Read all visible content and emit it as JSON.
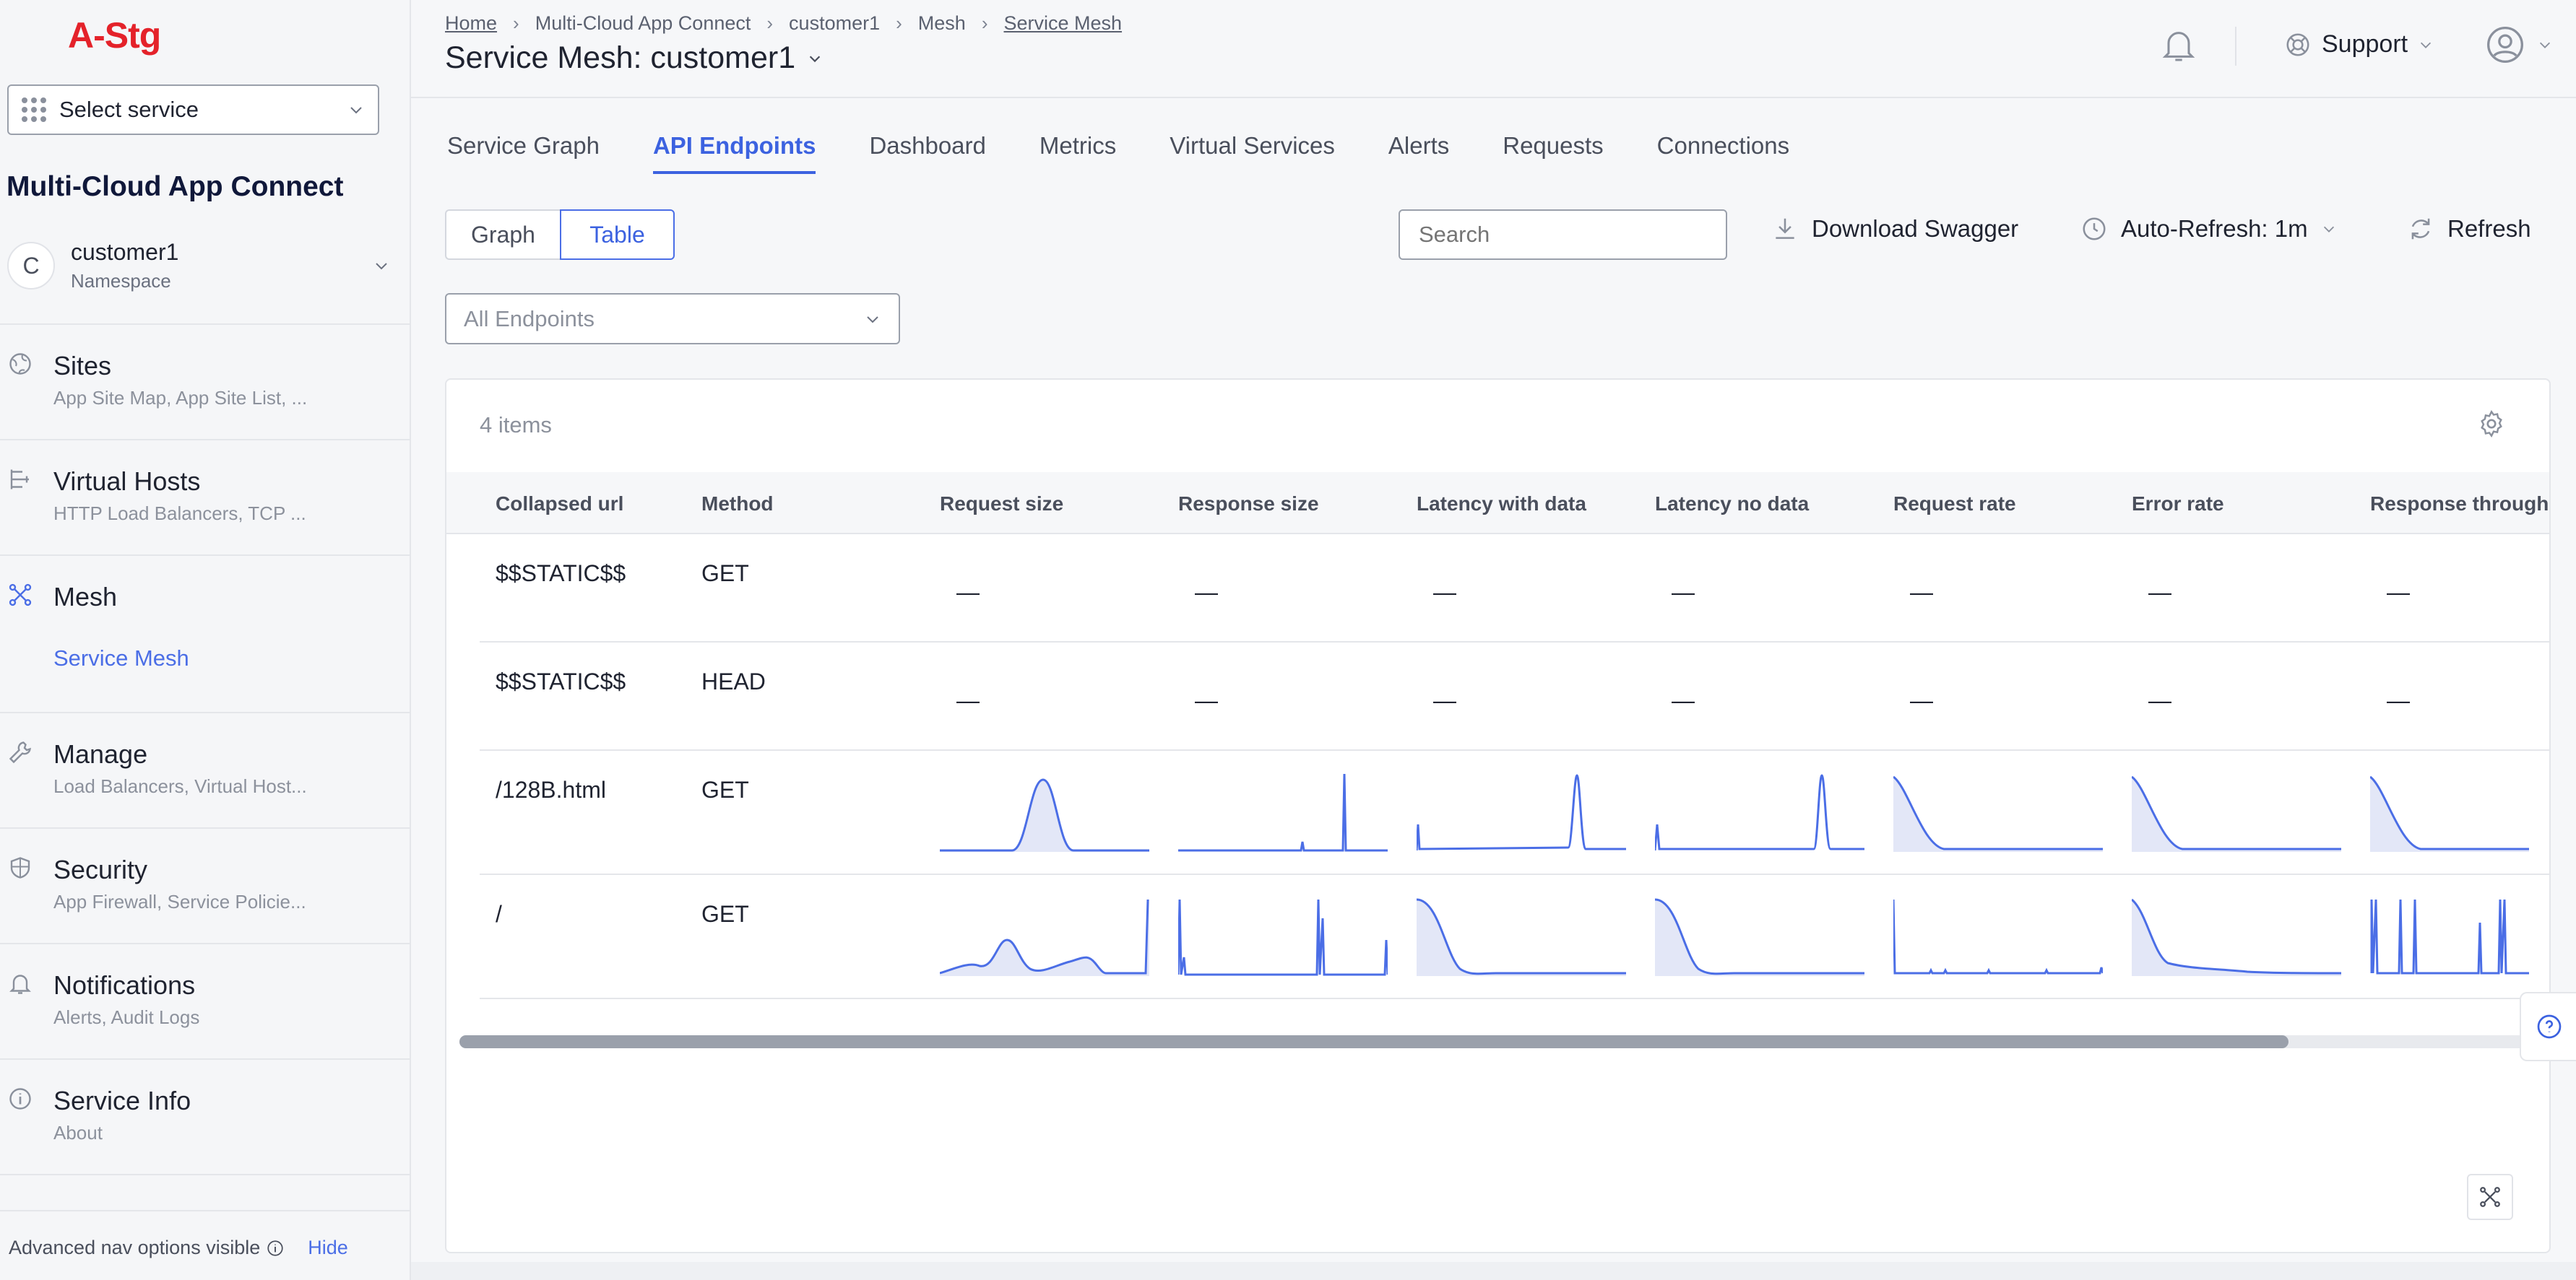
{
  "app": {
    "logo": "A-Stg",
    "service_select": "Select service",
    "workspace_title": "Multi-Cloud App Connect"
  },
  "namespace": {
    "initial": "C",
    "name": "customer1",
    "label": "Namespace"
  },
  "sidebar": {
    "items": [
      {
        "title": "Sites",
        "subtitle": "App Site Map, App Site List, ..."
      },
      {
        "title": "Virtual Hosts",
        "subtitle": "HTTP Load Balancers, TCP ..."
      },
      {
        "title": "Mesh",
        "subtitle": "",
        "sub_item": "Service Mesh"
      },
      {
        "title": "Manage",
        "subtitle": "Load Balancers, Virtual Host..."
      },
      {
        "title": "Security",
        "subtitle": "App Firewall, Service Policie..."
      },
      {
        "title": "Notifications",
        "subtitle": "Alerts, Audit Logs"
      },
      {
        "title": "Service Info",
        "subtitle": "About"
      }
    ],
    "footer_text": "Advanced nav options visible",
    "footer_link": "Hide"
  },
  "header": {
    "breadcrumbs": [
      "Home",
      "Multi-Cloud App Connect",
      "customer1",
      "Mesh",
      "Service Mesh"
    ],
    "title": "Service Mesh: customer1",
    "support": "Support"
  },
  "tabs": [
    "Service Graph",
    "API Endpoints",
    "Dashboard",
    "Metrics",
    "Virtual Services",
    "Alerts",
    "Requests",
    "Connections"
  ],
  "active_tab": "API Endpoints",
  "toolbar": {
    "view_graph": "Graph",
    "view_table": "Table",
    "search_placeholder": "Search",
    "download": "Download Swagger",
    "auto_refresh": "Auto-Refresh: 1m",
    "refresh": "Refresh",
    "endpoints_filter": "All Endpoints"
  },
  "table": {
    "count": "4 items",
    "columns": [
      "Collapsed url",
      "Method",
      "Request size",
      "Response size",
      "Latency with data",
      "Latency no data",
      "Request rate",
      "Error rate",
      "Response throughp"
    ],
    "rows": [
      {
        "url": "$$STATIC$$",
        "method": "GET",
        "cells": [
          "—",
          "—",
          "—",
          "—",
          "—",
          "—",
          "—"
        ]
      },
      {
        "url": "$$STATIC$$",
        "method": "HEAD",
        "cells": [
          "—",
          "—",
          "—",
          "—",
          "—",
          "—",
          "—"
        ]
      },
      {
        "url": "/128B.html",
        "method": "GET"
      },
      {
        "url": "/",
        "method": "GET"
      }
    ]
  },
  "colors": {
    "accent": "#3c62e0",
    "spark_line": "#4b6ee6",
    "spark_fill": "#e3e7f7",
    "brand_red": "#e4222a"
  }
}
